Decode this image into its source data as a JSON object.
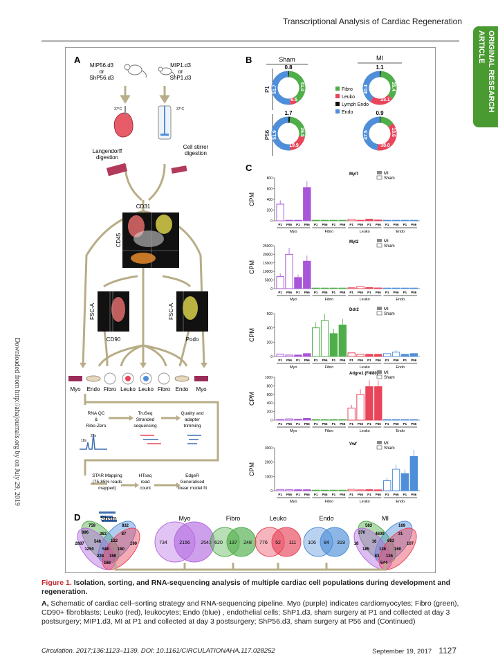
{
  "header": {
    "title": "Transcriptional Analysis of Cardiac Regeneration"
  },
  "side_tab": {
    "text": "ORIGINAL RESEARCH ARTICLE"
  },
  "margin_note": "Downloaded from http://ahajournals.org by on July 29, 2019",
  "figure": {
    "panel_a": {
      "letter": "A",
      "left_source": [
        "MIP56.d3",
        "or",
        "ShP56.d3"
      ],
      "right_source": [
        "MIP1.d3",
        "or",
        "ShP1.d3"
      ],
      "temp": "37°C",
      "left_method": [
        "Langendorff",
        "digestion"
      ],
      "right_method": [
        "Cell stirrer",
        "digestion"
      ],
      "facs_main": "CD31",
      "facs_side": "CD45",
      "facs_left_axis": "FSC-A",
      "facs_left": "CD90",
      "facs_right_axis": "FSC-A",
      "facs_right": "Podo",
      "cell_types": [
        "Myo",
        "Endo",
        "Fibro",
        "Leuko",
        "Leuko",
        "Fibro",
        "Endo",
        "Myo"
      ],
      "pipeline_row1": [
        [
          "RNA QC",
          "&",
          "Ribo-Zero"
        ],
        [
          "TruSeq",
          "Stranded",
          "sequencing"
        ],
        [
          "Quality and",
          "adapter",
          "trimming"
        ]
      ],
      "rna_peaks": [
        "28s",
        "18s"
      ],
      "pipeline_row2": [
        [
          "STAR Mapping",
          "(75-85% reads",
          "mapped)"
        ],
        [
          "HTseq",
          "read",
          "count"
        ],
        [
          "EdgeR",
          "Generalised",
          "linear model fit"
        ]
      ]
    },
    "panel_b": {
      "letter": "B",
      "col_labels": [
        "Sham",
        "MI"
      ],
      "row_labels": [
        "P1",
        "P56"
      ],
      "legend": [
        {
          "label": "Fibro",
          "color": "#4fae49"
        },
        {
          "label": "Leuko",
          "color": "#e8455a"
        },
        {
          "label": "Lymph Endo",
          "color": "#111111"
        },
        {
          "label": "Endo",
          "color": "#4f8fd9"
        }
      ],
      "donuts": [
        {
          "top": "0.8",
          "fibro": "41.0",
          "leuko": "6.5",
          "endo": "51.7",
          "fv": 41.0,
          "lv": 6.5,
          "ev": 51.7,
          "bv": 0.8
        },
        {
          "top": "1.1",
          "fibro": "35.4",
          "leuko": "23.1",
          "endo": "40.4",
          "fv": 35.4,
          "lv": 23.1,
          "ev": 40.4,
          "bv": 1.1
        },
        {
          "top": "1.7",
          "fibro": "26.5",
          "leuko": "19.9",
          "endo": "51.9",
          "fv": 26.5,
          "lv": 19.9,
          "ev": 51.9,
          "bv": 1.7
        },
        {
          "top": "0.9",
          "fibro": "13.6",
          "leuko": "38.0",
          "endo": "47.5",
          "fv": 13.6,
          "lv": 38.0,
          "ev": 47.5,
          "bv": 0.9
        }
      ]
    },
    "panel_c": {
      "letter": "C",
      "ylabel": "CPM",
      "legend": [
        "MI",
        "Sham"
      ],
      "x_ticks": [
        "P1",
        "P56",
        "P1",
        "P56",
        "P1",
        "P56",
        "P1",
        "P56",
        "P1",
        "P56",
        "P1",
        "P56",
        "P1",
        "P56",
        "P1",
        "P56"
      ],
      "groups": [
        "Myo",
        "Fibro",
        "Leuko",
        "Endo"
      ]
    },
    "panel_d": {
      "letter": "D",
      "titles": [
        "Sham",
        "Myo",
        "Fibro",
        "Leuko",
        "Endo",
        "MI"
      ],
      "sham_numbers": [
        "759",
        "832",
        "896",
        "87",
        "2887",
        "363",
        "190",
        "548",
        "122",
        "1250",
        "580",
        "180",
        "228",
        "159",
        "168"
      ],
      "myo": [
        "734",
        "2156",
        "2543"
      ],
      "fibro": [
        "620",
        "137",
        "248"
      ],
      "leuko": [
        "776",
        "52",
        "111"
      ],
      "endo": [
        "106",
        "84",
        "319"
      ],
      "mi_numbers": [
        "583",
        "169",
        "370",
        "31",
        "18",
        "4609",
        "107",
        "16",
        "603",
        "185",
        "136",
        "160",
        "83",
        "135",
        "544"
      ]
    }
  },
  "caption": {
    "label": "Figure 1.",
    "title": "Isolation, sorting, and RNA-sequencing analysis of multiple cardiac cell populations during development and regeneration.",
    "body_label": "A,",
    "body": "Schematic of cardiac cell–sorting strategy and RNA-sequencing pipeline. Myo (purple) indicates cardiomyocytes; Fibro (green), CD90+ fibroblasts; Leuko (red), leukocytes; Endo (blue) , endothelial cells; ShP1.d3, sham surgery at P1 and collected at day 3 postsurgery; MIP1.d3, MI at P1 and collected at day 3 postsurgery; ShP56.d3, sham surgery at P56 and (Continued)"
  },
  "footer": {
    "citation": "Circulation. 2017;136:1123–1139. DOI: 10.1161/CIRCULATIONAHA.117.028252",
    "date": "September 19, 2017",
    "page": "1127"
  },
  "chart_data": [
    {
      "type": "bar",
      "title": "Myl7",
      "ylabel": "CPM",
      "ylim": [
        0,
        800
      ],
      "yticks": [
        "0",
        "200",
        "400",
        "600",
        "800"
      ],
      "categories": [
        "Myo P1",
        "Myo P56",
        "Fibro P1",
        "Fibro P56",
        "Leuko P1",
        "Leuko P56",
        "Endo P1",
        "Endo P56"
      ],
      "series": [
        {
          "name": "Sham",
          "values": [
            310,
            10,
            2,
            2,
            28,
            5,
            3,
            3
          ]
        },
        {
          "name": "MI",
          "values": [
            10,
            620,
            2,
            2,
            30,
            15,
            2,
            3
          ]
        }
      ]
    },
    {
      "type": "bar",
      "title": "Myl2",
      "ylabel": "CPM",
      "ylim": [
        0,
        25000
      ],
      "yticks": [
        "0",
        "5000",
        "10000",
        "15000",
        "20000",
        "25000"
      ],
      "categories": [
        "Myo P1",
        "Myo P56",
        "Fibro P1",
        "Fibro P56",
        "Leuko P1",
        "Leuko P56",
        "Endo P1",
        "Endo P56"
      ],
      "series": [
        {
          "name": "Sham",
          "values": [
            7000,
            20000,
            50,
            50,
            500,
            1200,
            100,
            100
          ]
        },
        {
          "name": "MI",
          "values": [
            6500,
            16000,
            50,
            50,
            600,
            400,
            100,
            100
          ]
        }
      ]
    },
    {
      "type": "bar",
      "title": "Ddr2",
      "ylabel": "CPM",
      "ylim": [
        0,
        600
      ],
      "yticks": [
        "0",
        "200",
        "400",
        "600"
      ],
      "categories": [
        "Myo P1",
        "Myo P56",
        "Fibro P1",
        "Fibro P56",
        "Leuko P1",
        "Leuko P56",
        "Endo P1",
        "Endo P56"
      ],
      "series": [
        {
          "name": "Sham",
          "values": [
            30,
            20,
            400,
            500,
            50,
            30,
            40,
            60
          ]
        },
        {
          "name": "MI",
          "values": [
            20,
            40,
            320,
            440,
            30,
            30,
            30,
            40
          ]
        }
      ]
    },
    {
      "type": "bar",
      "title": "Adgre1 (F4/80)",
      "ylabel": "CPM",
      "ylim": [
        0,
        1000
      ],
      "yticks": [
        "0",
        "200",
        "400",
        "600",
        "800",
        "1000"
      ],
      "categories": [
        "Myo P1",
        "Myo P56",
        "Fibro P1",
        "Fibro P56",
        "Leuko P1",
        "Leuko P56",
        "Endo P1",
        "Endo P56"
      ],
      "series": [
        {
          "name": "Sham",
          "values": [
            10,
            30,
            5,
            5,
            280,
            600,
            5,
            10
          ]
        },
        {
          "name": "MI",
          "values": [
            20,
            40,
            5,
            5,
            780,
            780,
            5,
            10
          ]
        }
      ]
    },
    {
      "type": "bar",
      "title": "Vwf",
      "ylabel": "CPM",
      "ylim": [
        0,
        3000
      ],
      "yticks": [
        "0",
        "1000",
        "2000",
        "3000"
      ],
      "categories": [
        "Myo P1",
        "Myo P56",
        "Fibro P1",
        "Fibro P56",
        "Leuko P1",
        "Leuko P56",
        "Endo P1",
        "Endo P56"
      ],
      "series": [
        {
          "name": "Sham",
          "values": [
            80,
            80,
            20,
            20,
            100,
            60,
            700,
            1500
          ]
        },
        {
          "name": "MI",
          "values": [
            70,
            70,
            20,
            20,
            80,
            60,
            1200,
            2400
          ]
        }
      ]
    }
  ]
}
